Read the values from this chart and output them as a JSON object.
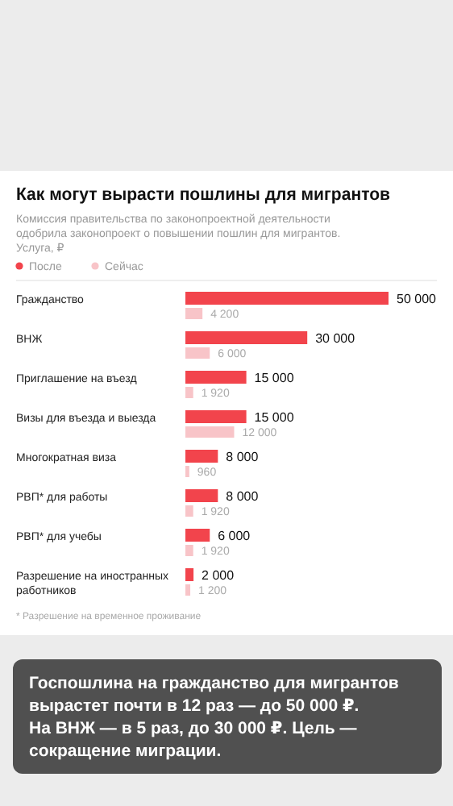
{
  "chart_data": {
    "type": "bar",
    "orientation": "horizontal",
    "title": "Как могут вырасти пошлины для мигрантов",
    "subtitle": "Комиссия правительства по законопроектной деятельности одобрила законопроект о повышении пошлин для мигрантов.",
    "ylabel": "Услуга, ₽",
    "categories": [
      "Гражданство",
      "ВНЖ",
      "Приглашение на въезд",
      "Визы для въезда и выезда",
      "Многократная виза",
      "РВП* для работы",
      "РВП* для учебы",
      "Разрешение на иностранных работников"
    ],
    "series": [
      {
        "name": "После",
        "color": "#f2444c",
        "values": [
          50000,
          30000,
          15000,
          15000,
          8000,
          8000,
          6000,
          2000
        ]
      },
      {
        "name": "Сейчас",
        "color": "#f8c4c8",
        "values": [
          4200,
          6000,
          1920,
          12000,
          960,
          1920,
          1920,
          1200
        ]
      }
    ],
    "xlim": [
      0,
      50000
    ],
    "data_labels": true,
    "legend": "top",
    "tick_labels": "y",
    "annotations": [
      "* Разрешение на временное проживание",
      "Госпошлина на гражданство для мигрантов вырастет почти в 12 раз — до 50 000 ₽. На ВНЖ — в 5 раз, до 30 000 ₽. Цель — сокращение миграции."
    ]
  }
}
